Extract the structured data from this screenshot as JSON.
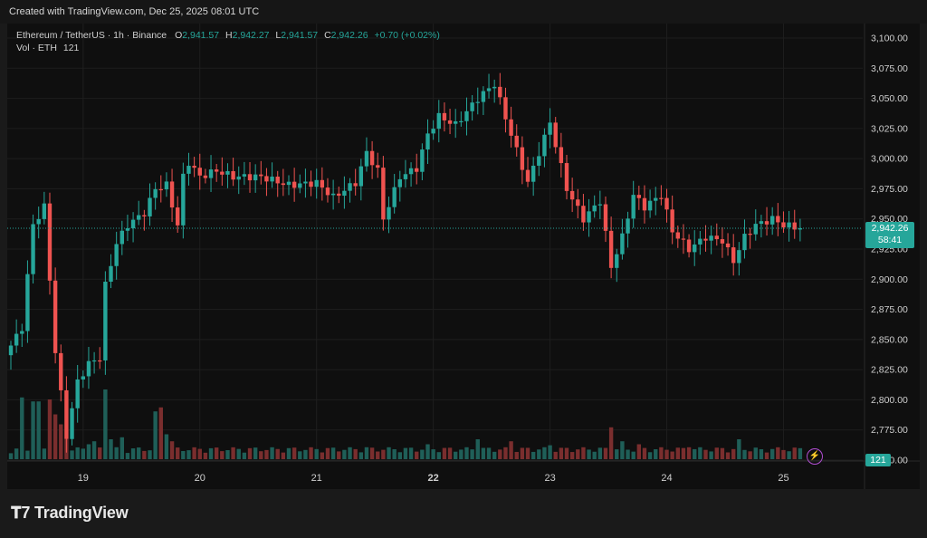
{
  "header": {
    "created": "Created with TradingView.com, Dec 25, 2025 08:01 UTC"
  },
  "legend": {
    "symbol": "Ethereum / TetherUS · 1h · Binance",
    "o_label": "O",
    "o": "2,941.57",
    "h_label": "H",
    "h": "2,942.27",
    "l_label": "L",
    "l": "2,941.57",
    "c_label": "C",
    "c": "2,942.26",
    "change": "+0.70 (+0.02%)",
    "vol_label": "Vol · ETH",
    "vol": "121"
  },
  "price_tag": {
    "price": "2,942.26",
    "countdown": "58:41"
  },
  "vol_tag": "121",
  "brand": "TradingView",
  "colors": {
    "up": "#26a69a",
    "down": "#ef5350",
    "vol_up": "#1f5f58",
    "vol_down": "#7a2e2e",
    "bg": "#0f0f0f",
    "grid": "#1e1e1e",
    "alert": "#b44fd6"
  },
  "chart_data": {
    "type": "candlestick",
    "interval": "1h",
    "y_ticks": [
      3100,
      3075,
      3050,
      3025,
      3000,
      2975,
      2950,
      2925,
      2900,
      2875,
      2850,
      2825,
      2800,
      2775,
      2750
    ],
    "y_tick_labels": [
      "3,100.00",
      "3,075.00",
      "3,050.00",
      "3,025.00",
      "3,000.00",
      "2,975.00",
      "2,950.00",
      "2,925.00",
      "2,900.00",
      "2,875.00",
      "2,850.00",
      "2,825.00",
      "2,800.00",
      "2,775.00",
      "2,750.00"
    ],
    "x_ticks": [
      {
        "label": "19",
        "bar": 13,
        "bold": false
      },
      {
        "label": "20",
        "bar": 34,
        "bold": false
      },
      {
        "label": "21",
        "bar": 55,
        "bold": false
      },
      {
        "label": "22",
        "bar": 76,
        "bold": true
      },
      {
        "label": "23",
        "bar": 97,
        "bold": false
      },
      {
        "label": "24",
        "bar": 118,
        "bold": false
      },
      {
        "label": "25",
        "bar": 139,
        "bold": false
      }
    ],
    "last_price": 2942.26,
    "anchors": [
      [
        0,
        2845
      ],
      [
        2,
        2860
      ],
      [
        4,
        2945
      ],
      [
        6,
        2960
      ],
      [
        8,
        2840
      ],
      [
        10,
        2770
      ],
      [
        12,
        2815
      ],
      [
        14,
        2830
      ],
      [
        16,
        2835
      ],
      [
        17,
        2895
      ],
      [
        19,
        2930
      ],
      [
        21,
        2945
      ],
      [
        24,
        2955
      ],
      [
        26,
        2975
      ],
      [
        28,
        2978
      ],
      [
        30,
        2945
      ],
      [
        31,
        2985
      ],
      [
        32,
        2997
      ],
      [
        34,
        2985
      ],
      [
        37,
        2990
      ],
      [
        40,
        2985
      ],
      [
        45,
        2985
      ],
      [
        50,
        2978
      ],
      [
        55,
        2980
      ],
      [
        58,
        2968
      ],
      [
        62,
        2980
      ],
      [
        64,
        3005
      ],
      [
        66,
        2990
      ],
      [
        67,
        2950
      ],
      [
        70,
        2985
      ],
      [
        73,
        2992
      ],
      [
        75,
        3020
      ],
      [
        77,
        3035
      ],
      [
        80,
        3028
      ],
      [
        84,
        3050
      ],
      [
        87,
        3062
      ],
      [
        90,
        3020
      ],
      [
        93,
        2980
      ],
      [
        95,
        3005
      ],
      [
        97,
        3030
      ],
      [
        100,
        2975
      ],
      [
        103,
        2950
      ],
      [
        106,
        2965
      ],
      [
        108,
        2910
      ],
      [
        110,
        2935
      ],
      [
        112,
        2970
      ],
      [
        114,
        2960
      ],
      [
        117,
        2970
      ],
      [
        119,
        2940
      ],
      [
        122,
        2925
      ],
      [
        125,
        2935
      ],
      [
        128,
        2932
      ],
      [
        130,
        2915
      ],
      [
        132,
        2935
      ],
      [
        134,
        2945
      ],
      [
        137,
        2950
      ],
      [
        139,
        2945
      ],
      [
        142,
        2942.26
      ]
    ],
    "volume_scale_max": 100,
    "volume_big": [
      [
        2,
        62
      ],
      [
        4,
        58
      ],
      [
        5,
        58
      ],
      [
        7,
        60
      ],
      [
        8,
        45
      ],
      [
        9,
        35
      ],
      [
        10,
        20
      ],
      [
        14,
        15
      ],
      [
        15,
        18
      ],
      [
        17,
        70
      ],
      [
        18,
        20
      ],
      [
        19,
        12
      ],
      [
        20,
        22
      ],
      [
        26,
        48
      ],
      [
        27,
        52
      ],
      [
        28,
        25
      ],
      [
        29,
        18
      ],
      [
        64,
        12
      ],
      [
        75,
        15
      ],
      [
        84,
        20
      ],
      [
        90,
        18
      ],
      [
        97,
        14
      ],
      [
        108,
        32
      ],
      [
        110,
        18
      ],
      [
        113,
        15
      ],
      [
        122,
        12
      ],
      [
        131,
        20
      ],
      [
        135,
        10
      ]
    ],
    "volume_base": 6
  }
}
